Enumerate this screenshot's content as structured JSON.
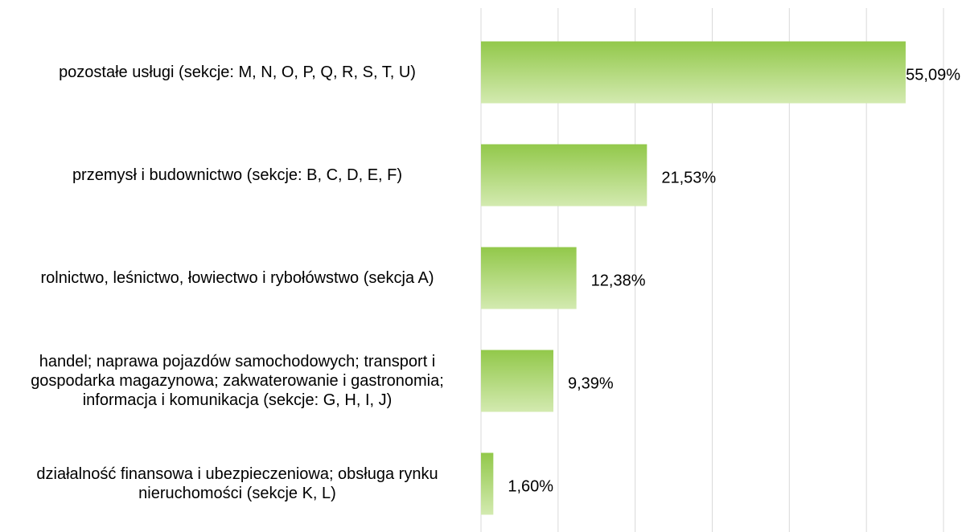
{
  "chart_data": {
    "type": "barh",
    "categories": [
      "pozostałe usługi (sekcje: M, N, O, P, Q, R, S, T, U)",
      "przemysł i budownictwo (sekcje: B, C, D, E, F)",
      "rolnictwo, leśnictwo, łowiectwo i rybołówstwo (sekcja A)",
      "handel; naprawa pojazdów samochodowych; transport i gospodarka magazynowa; zakwaterowanie i gastronomia; informacja i komunikacja (sekcje: G, H, I, J)",
      "działalność finansowa i ubezpieczeniowa; obsługa rynku nieruchomości (sekcje K, L)"
    ],
    "values": [
      55.09,
      21.53,
      12.38,
      9.39,
      1.6
    ],
    "value_labels": [
      "55,09%",
      "21,53%",
      "12,38%",
      "9,39%",
      "1,60%"
    ],
    "color": "#92c84a",
    "xlim": [
      0,
      60
    ],
    "xticks": [
      0,
      10,
      20,
      30,
      40,
      50,
      60
    ],
    "grid": true
  }
}
